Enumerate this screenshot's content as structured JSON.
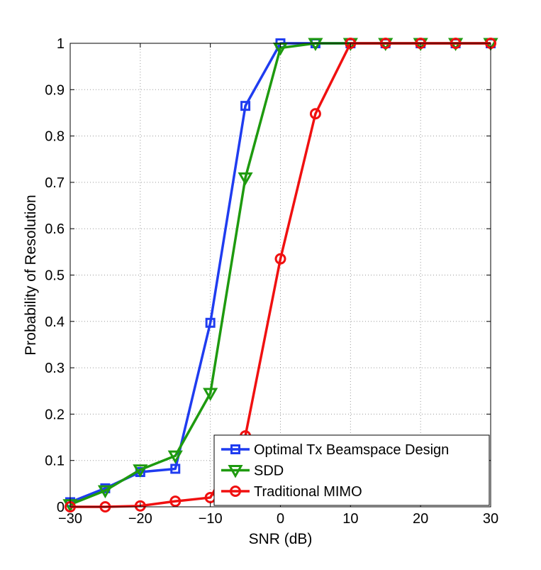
{
  "chart_data": {
    "type": "line",
    "title": "",
    "xlabel": "SNR (dB)",
    "ylabel": "Probability of Resolution",
    "xlim": [
      -30,
      30
    ],
    "ylim": [
      0,
      1
    ],
    "x_ticks": [
      -30,
      -20,
      -10,
      0,
      10,
      20,
      30
    ],
    "x_tick_labels": [
      "−30",
      "−20",
      "−10",
      "0",
      "10",
      "20",
      "30"
    ],
    "y_ticks": [
      0,
      0.1,
      0.2,
      0.3,
      0.4,
      0.5,
      0.6,
      0.7,
      0.8,
      0.9,
      1
    ],
    "y_tick_labels": [
      "0",
      "0.1",
      "0.2",
      "0.3",
      "0.4",
      "0.5",
      "0.6",
      "0.7",
      "0.8",
      "0.9",
      "1"
    ],
    "grid": true,
    "legend_position": "bottom-right",
    "x": [
      -30,
      -25,
      -20,
      -15,
      -10,
      -5,
      0,
      5,
      10,
      15,
      20,
      25,
      30
    ],
    "series": [
      {
        "name": "Optimal Tx Beamspace Design",
        "color": "#1f3cf0",
        "marker": "square",
        "values": [
          0.01,
          0.04,
          0.075,
          0.082,
          0.397,
          0.865,
          1.0,
          1.0,
          1.0,
          1.0,
          1.0,
          1.0,
          1.0
        ]
      },
      {
        "name": "SDD",
        "color": "#1e9a0f",
        "marker": "triangle-down",
        "values": [
          0.005,
          0.035,
          0.08,
          0.11,
          0.245,
          0.71,
          0.99,
          1.0,
          1.0,
          1.0,
          1.0,
          1.0,
          1.0
        ]
      },
      {
        "name": "Traditional MIMO",
        "color": "#f01010",
        "marker": "circle",
        "values": [
          0.0,
          0.0,
          0.002,
          0.012,
          0.02,
          0.153,
          0.535,
          0.848,
          1.0,
          1.0,
          1.0,
          1.0,
          1.0
        ]
      }
    ]
  }
}
